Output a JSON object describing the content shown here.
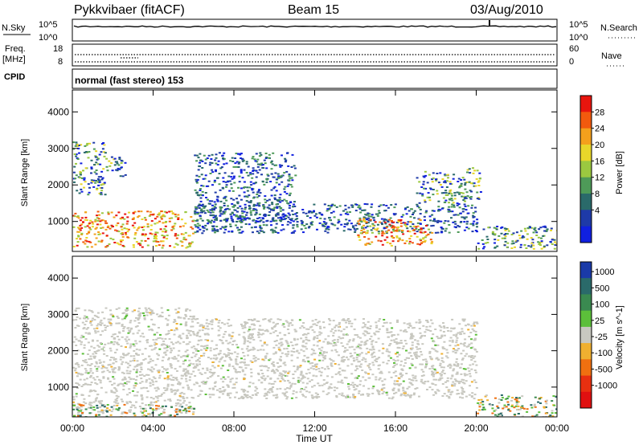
{
  "header": {
    "radar": "Pykkvibaer (fitACF)",
    "beam": "Beam 15",
    "date": "03/Aug/2010"
  },
  "noise_panel": {
    "left_label": "N.Sky",
    "right_label": "N.Search",
    "left_ticks": [
      "10^5",
      "10^0"
    ],
    "right_ticks": [
      "10^5",
      "10^0"
    ]
  },
  "freq_panel": {
    "left_label_top": "Freq.",
    "left_label_unit": "[MHz]",
    "right_label": "Nave",
    "left_ticks": [
      "18",
      "8"
    ],
    "right_ticks": [
      "60",
      "0"
    ]
  },
  "cpid_panel": {
    "label": "CPID",
    "mode_text": "normal (fast stereo) 153"
  },
  "chart_data": [
    {
      "type": "heatmap",
      "name": "power",
      "ylabel": "Slant Range [km]",
      "ylim": [
        180,
        4600
      ],
      "yticks": [
        1000,
        2000,
        3000,
        4000
      ],
      "xlim": [
        0,
        24
      ],
      "colorbar": {
        "label": "Power [dB]",
        "ticks": [
          "28",
          "24",
          "20",
          "16",
          "12",
          "8",
          "4"
        ],
        "colors": [
          "#e8150e",
          "#f25a0e",
          "#f4a01c",
          "#e8d62a",
          "#9bc840",
          "#4e9a58",
          "#2a6a6a",
          "#1e3aa8",
          "#1020e0"
        ]
      },
      "regions": [
        {
          "t0": 0.0,
          "t1": 1.6,
          "r0": 1750,
          "r1": 3200,
          "level": "mid"
        },
        {
          "t0": 1.6,
          "t1": 2.6,
          "r0": 2200,
          "r1": 2800,
          "level": "mid"
        },
        {
          "t0": 0.0,
          "t1": 6.0,
          "r0": 300,
          "r1": 1300,
          "level": "high"
        },
        {
          "t0": 6.0,
          "t1": 11.0,
          "r0": 1000,
          "r1": 2900,
          "level": "low"
        },
        {
          "t0": 6.0,
          "t1": 20.0,
          "r0": 700,
          "r1": 1500,
          "level": "low"
        },
        {
          "t0": 14.0,
          "t1": 17.8,
          "r0": 350,
          "r1": 1100,
          "level": "high"
        },
        {
          "t0": 17.0,
          "t1": 19.5,
          "r0": 1500,
          "r1": 2400,
          "level": "mid"
        },
        {
          "t0": 19.5,
          "t1": 20.2,
          "r0": 1600,
          "r1": 2500,
          "level": "mid"
        },
        {
          "t0": 20.0,
          "t1": 24.0,
          "r0": 250,
          "r1": 900,
          "level": "mid"
        }
      ]
    },
    {
      "type": "heatmap",
      "name": "velocity",
      "ylabel": "Slant Range [km]",
      "xlabel": "Time UT",
      "ylim": [
        180,
        4600
      ],
      "yticks": [
        1000,
        2000,
        3000,
        4000
      ],
      "xlim": [
        0,
        24
      ],
      "xticks": [
        "00:00",
        "04:00",
        "08:00",
        "12:00",
        "16:00",
        "20:00",
        "00:00"
      ],
      "colorbar": {
        "label": "Velocity [m s^-1]",
        "ticks": [
          "1000",
          "500",
          "100",
          "25",
          "-25",
          "-100",
          "-500",
          "-1000"
        ],
        "colors": [
          "#1a3aa8",
          "#2a6a6a",
          "#3a8a50",
          "#5cbf3a",
          "#c8c8c0",
          "#f0b030",
          "#f07010",
          "#e83010",
          "#e01010"
        ]
      },
      "regions": [
        {
          "t0": 0.0,
          "t1": 6.0,
          "r0": 300,
          "r1": 3200,
          "level": "ground"
        },
        {
          "t0": 6.0,
          "t1": 20.0,
          "r0": 700,
          "r1": 2900,
          "level": "ground"
        },
        {
          "t0": 0.0,
          "t1": 6.0,
          "r0": 180,
          "r1": 550,
          "level": "negative"
        },
        {
          "t0": 20.0,
          "t1": 24.0,
          "r0": 200,
          "r1": 800,
          "level": "negative"
        }
      ]
    }
  ]
}
